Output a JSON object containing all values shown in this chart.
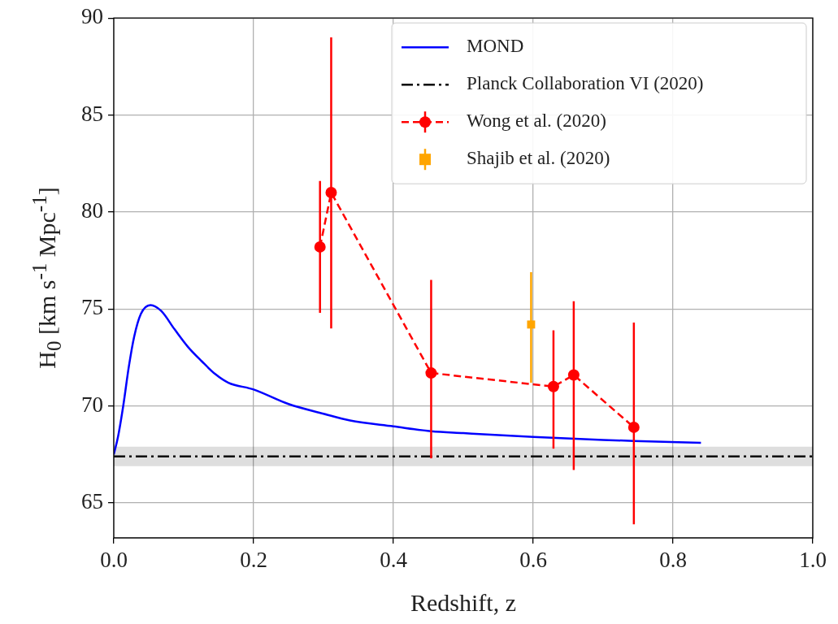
{
  "chart_data": {
    "type": "line",
    "xlabel": "Redshift, z",
    "ylabel": "H$_{0}$ [km s$^{-1}$ Mpc$^{-1}$]",
    "xlim": [
      0,
      1
    ],
    "xticks": [
      {
        "value": 0,
        "label": "0.0"
      },
      {
        "value": 0.2,
        "label": "0.2"
      },
      {
        "value": 0.4,
        "label": "0.4"
      },
      {
        "value": 0.6,
        "label": "0.6"
      },
      {
        "value": 0.8,
        "label": "0.8"
      },
      {
        "value": 1,
        "label": "1.0"
      }
    ],
    "ylim": [
      63.2,
      90
    ],
    "yticks": [
      65,
      70,
      75,
      80,
      85,
      90
    ],
    "grid": true,
    "legend": "top right",
    "series": [
      {
        "name": "MOND",
        "type": "line",
        "color": "#0000ff",
        "marker": "none",
        "line_style": "solid",
        "x": [
          0,
          0.006,
          0.0137,
          0.0214,
          0.029,
          0.0388,
          0.0525,
          0.0678,
          0.087,
          0.106,
          0.126,
          0.145,
          0.164,
          0.2,
          0.25,
          0.3,
          0.338,
          0.4,
          0.454,
          0.5,
          0.6,
          0.7,
          0.744,
          0.84
        ],
        "values": [
          67.5,
          68.4,
          70.05,
          72.0,
          73.55,
          74.75,
          75.2,
          74.9,
          73.95,
          73.05,
          72.3,
          71.65,
          71.2,
          70.85,
          70.1,
          69.6,
          69.25,
          68.95,
          68.7,
          68.6,
          68.4,
          68.25,
          68.2,
          68.1
        ]
      },
      {
        "name": "Planck Collaboration VI (2020)",
        "type": "line",
        "color": "#000000",
        "marker": "none",
        "line_style": "dashdot",
        "x": [
          0,
          1
        ],
        "values": [
          67.4,
          67.4
        ],
        "lower": [
          66.9,
          66.9
        ],
        "upper": [
          67.9,
          67.9
        ]
      },
      {
        "name": "Wong et al. (2020)",
        "type": "line",
        "color": "#ff0000",
        "marker": "circle",
        "line_style": "dashed",
        "x": [
          0.295,
          0.311,
          0.454,
          0.629,
          0.658,
          0.744
        ],
        "values": [
          78.2,
          81.0,
          71.7,
          71.0,
          71.6,
          68.9
        ],
        "errors": [
          [
            74.8,
            81.6
          ],
          [
            74.0,
            89.0
          ],
          [
            67.3,
            76.5
          ],
          [
            67.8,
            73.9
          ],
          [
            66.7,
            75.4
          ],
          [
            63.9,
            74.3
          ]
        ]
      },
      {
        "name": "Shajib et al. (2020)",
        "type": "scatter",
        "color": "#ffa500",
        "marker": "square",
        "x": [
          0.597
        ],
        "values": [
          74.2
        ],
        "errors": [
          [
            71.2,
            76.9
          ]
        ]
      }
    ]
  }
}
